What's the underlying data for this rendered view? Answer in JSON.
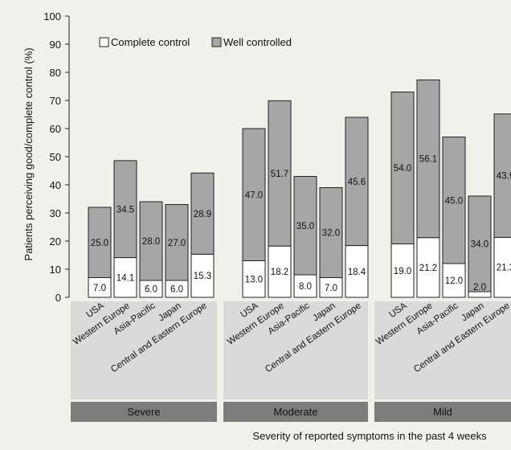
{
  "chart_data": {
    "type": "bar",
    "stacked": true,
    "ylabel": "Patients perceiving good/complete control (%)",
    "xlabel": "Severity of reported symptoms in the past 4 weeks",
    "ylim": [
      0,
      100
    ],
    "yticks": [
      0,
      10,
      20,
      30,
      40,
      50,
      60,
      70,
      80,
      90,
      100
    ],
    "legend": {
      "position": "top-left",
      "entries": [
        {
          "name": "Complete control",
          "color": "#ffffff"
        },
        {
          "name": "Well controlled",
          "color": "#a6a6a6"
        }
      ]
    },
    "categories": [
      "USA",
      "Western Europe",
      "Asia-Pacific",
      "Japan",
      "Central and Eastern Europe"
    ],
    "groups": [
      {
        "name": "Severe",
        "complete": [
          "7.0",
          "14.1",
          "6.0",
          "6.0",
          "15.3"
        ],
        "well": [
          "25.0",
          "34.5",
          "28.0",
          "27.0",
          "28.9"
        ]
      },
      {
        "name": "Moderate",
        "complete": [
          "13.0",
          "18.2",
          "8.0",
          "7.0",
          "18.4"
        ],
        "well": [
          "47.0",
          "51.7",
          "35.0",
          "32.0",
          "45.6"
        ]
      },
      {
        "name": "Mild",
        "complete": [
          "19.0",
          "21.2",
          "12.0",
          "2.0",
          "21.3"
        ],
        "well": [
          "54.0",
          "56.1",
          "45.0",
          "34.0",
          "43.9"
        ]
      }
    ]
  }
}
